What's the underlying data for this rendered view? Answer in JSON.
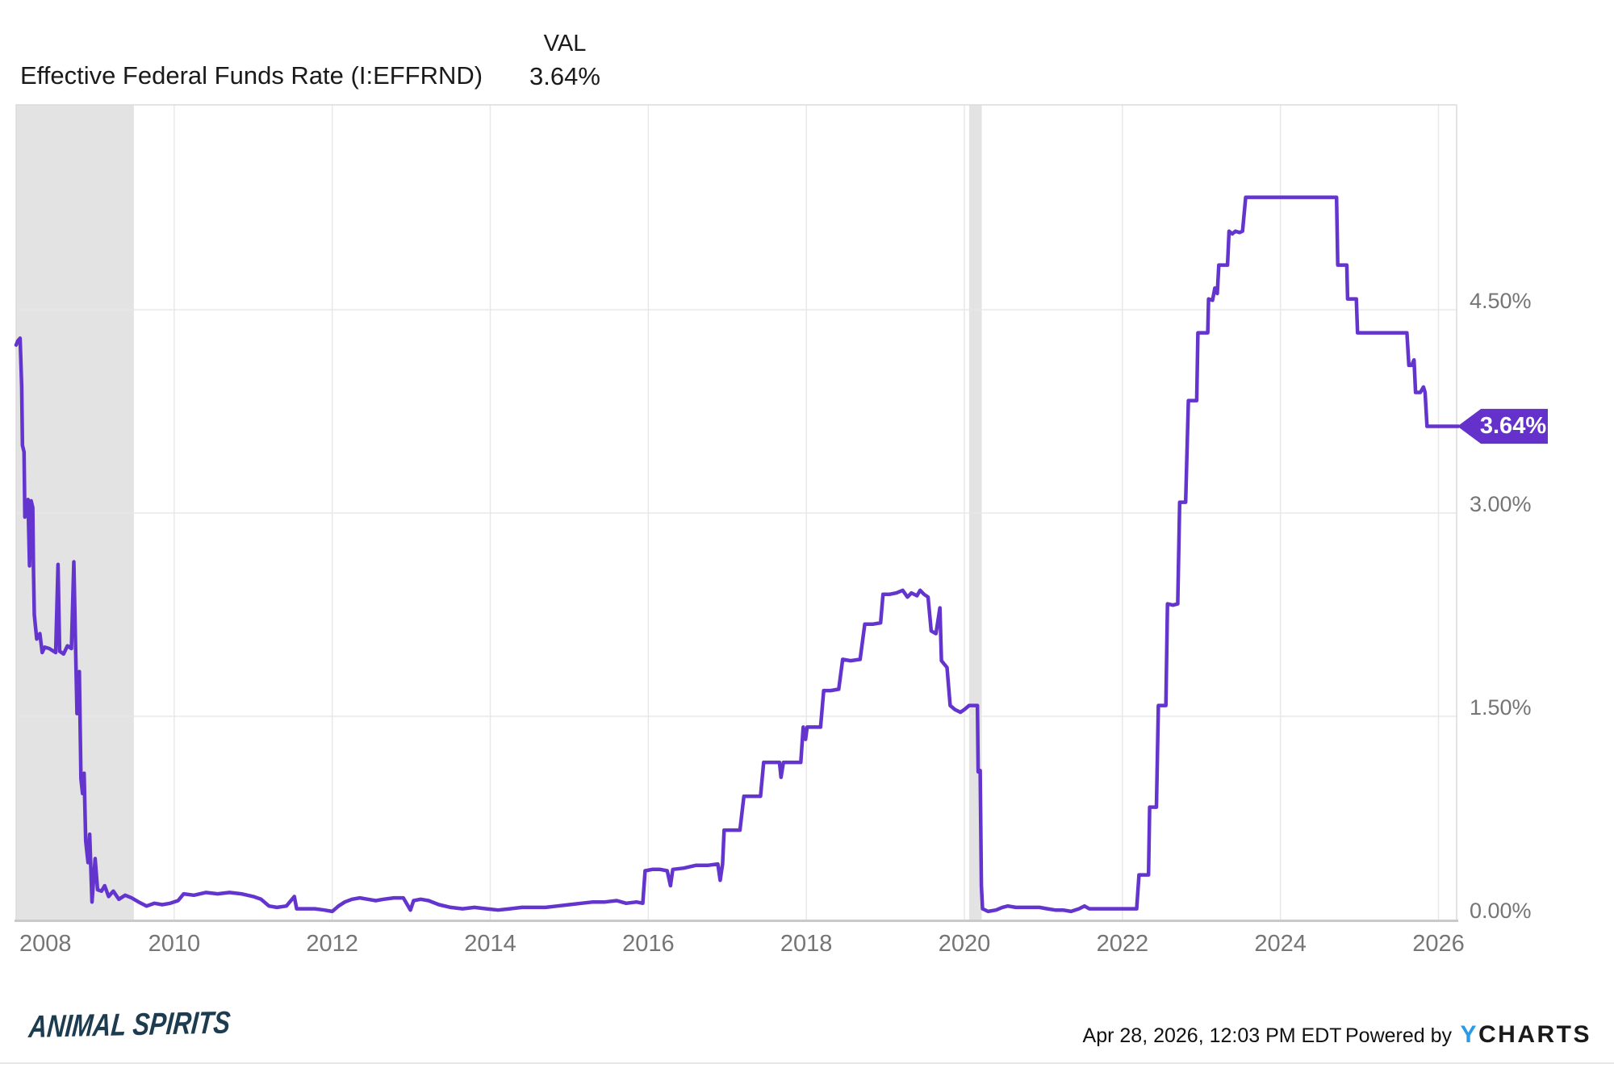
{
  "header": {
    "title": "Effective Federal Funds Rate (I:EFFRND)",
    "val_label": "VAL",
    "val_value": "3.64%"
  },
  "chart_data": {
    "type": "line",
    "title": "Effective Federal Funds Rate (I:EFFRND)",
    "series_name": "Effective Federal Funds Rate",
    "unit": "percent",
    "xlim": [
      2008.0,
      2026.25
    ],
    "ylim": [
      0,
      6.012
    ],
    "grid": true,
    "legend_position": "none",
    "x_ticks": [
      {
        "label": "2008",
        "year": 2008
      },
      {
        "label": "2010",
        "year": 2010
      },
      {
        "label": "2012",
        "year": 2012
      },
      {
        "label": "2014",
        "year": 2014
      },
      {
        "label": "2016",
        "year": 2016
      },
      {
        "label": "2018",
        "year": 2018
      },
      {
        "label": "2020",
        "year": 2020
      },
      {
        "label": "2022",
        "year": 2022
      },
      {
        "label": "2024",
        "year": 2024
      },
      {
        "label": "2026",
        "year": 2026
      }
    ],
    "y_ticks": [
      {
        "label": "0.00%",
        "value": 0
      },
      {
        "label": "1.50%",
        "value": 1.5
      },
      {
        "label": "3.00%",
        "value": 3.0
      },
      {
        "label": "4.50%",
        "value": 4.5
      }
    ],
    "recession_bands": [
      {
        "x0": 2008.0,
        "x1": 2009.49
      },
      {
        "x0": 2020.06,
        "x1": 2020.22
      }
    ],
    "last_value_label": "3.64%",
    "line_color": "#6434cf",
    "band_color": "#e3e3e3",
    "points": [
      [
        2008.0,
        4.24
      ],
      [
        2008.02,
        4.27
      ],
      [
        2008.05,
        4.29
      ],
      [
        2008.07,
        3.93
      ],
      [
        2008.08,
        3.5
      ],
      [
        2008.1,
        3.45
      ],
      [
        2008.11,
        2.97
      ],
      [
        2008.13,
        3.07
      ],
      [
        2008.15,
        3.1
      ],
      [
        2008.17,
        2.61
      ],
      [
        2008.19,
        3.09
      ],
      [
        2008.21,
        3.04
      ],
      [
        2008.22,
        2.58
      ],
      [
        2008.23,
        2.25
      ],
      [
        2008.26,
        2.07
      ],
      [
        2008.3,
        2.11
      ],
      [
        2008.33,
        1.97
      ],
      [
        2008.36,
        2.01
      ],
      [
        2008.42,
        2.0
      ],
      [
        2008.5,
        1.97
      ],
      [
        2008.53,
        2.62
      ],
      [
        2008.55,
        1.98
      ],
      [
        2008.6,
        1.96
      ],
      [
        2008.65,
        2.02
      ],
      [
        2008.7,
        2.0
      ],
      [
        2008.73,
        2.64
      ],
      [
        2008.755,
        1.94
      ],
      [
        2008.77,
        1.52
      ],
      [
        2008.8,
        1.83
      ],
      [
        2008.82,
        1.04
      ],
      [
        2008.84,
        0.93
      ],
      [
        2008.86,
        1.08
      ],
      [
        2008.88,
        0.58
      ],
      [
        2008.91,
        0.42
      ],
      [
        2008.93,
        0.63
      ],
      [
        2008.96,
        0.13
      ],
      [
        2009.0,
        0.45
      ],
      [
        2009.03,
        0.22
      ],
      [
        2009.08,
        0.21
      ],
      [
        2009.12,
        0.25
      ],
      [
        2009.17,
        0.17
      ],
      [
        2009.23,
        0.21
      ],
      [
        2009.3,
        0.15
      ],
      [
        2009.38,
        0.18
      ],
      [
        2009.46,
        0.16
      ],
      [
        2009.55,
        0.13
      ],
      [
        2009.65,
        0.1
      ],
      [
        2009.75,
        0.12
      ],
      [
        2009.85,
        0.11
      ],
      [
        2009.95,
        0.12
      ],
      [
        2010.05,
        0.14
      ],
      [
        2010.12,
        0.19
      ],
      [
        2010.25,
        0.18
      ],
      [
        2010.4,
        0.2
      ],
      [
        2010.55,
        0.19
      ],
      [
        2010.7,
        0.2
      ],
      [
        2010.85,
        0.19
      ],
      [
        2011.0,
        0.17
      ],
      [
        2011.1,
        0.15
      ],
      [
        2011.2,
        0.1
      ],
      [
        2011.3,
        0.09
      ],
      [
        2011.42,
        0.1
      ],
      [
        2011.52,
        0.17
      ],
      [
        2011.55,
        0.08
      ],
      [
        2011.65,
        0.08
      ],
      [
        2011.78,
        0.08
      ],
      [
        2011.9,
        0.07
      ],
      [
        2012.0,
        0.06
      ],
      [
        2012.08,
        0.1
      ],
      [
        2012.16,
        0.13
      ],
      [
        2012.25,
        0.15
      ],
      [
        2012.35,
        0.16
      ],
      [
        2012.45,
        0.15
      ],
      [
        2012.55,
        0.14
      ],
      [
        2012.65,
        0.15
      ],
      [
        2012.78,
        0.16
      ],
      [
        2012.9,
        0.16
      ],
      [
        2012.99,
        0.07
      ],
      [
        2013.03,
        0.14
      ],
      [
        2013.12,
        0.15
      ],
      [
        2013.22,
        0.14
      ],
      [
        2013.35,
        0.11
      ],
      [
        2013.5,
        0.09
      ],
      [
        2013.65,
        0.08
      ],
      [
        2013.8,
        0.09
      ],
      [
        2013.95,
        0.08
      ],
      [
        2014.1,
        0.07
      ],
      [
        2014.25,
        0.08
      ],
      [
        2014.4,
        0.09
      ],
      [
        2014.55,
        0.09
      ],
      [
        2014.7,
        0.09
      ],
      [
        2014.85,
        0.1
      ],
      [
        2015.0,
        0.11
      ],
      [
        2015.15,
        0.12
      ],
      [
        2015.3,
        0.13
      ],
      [
        2015.45,
        0.13
      ],
      [
        2015.6,
        0.14
      ],
      [
        2015.72,
        0.12
      ],
      [
        2015.85,
        0.13
      ],
      [
        2015.93,
        0.12
      ],
      [
        2015.96,
        0.36
      ],
      [
        2016.05,
        0.37
      ],
      [
        2016.15,
        0.37
      ],
      [
        2016.24,
        0.36
      ],
      [
        2016.28,
        0.25
      ],
      [
        2016.31,
        0.37
      ],
      [
        2016.45,
        0.38
      ],
      [
        2016.6,
        0.4
      ],
      [
        2016.75,
        0.4
      ],
      [
        2016.88,
        0.41
      ],
      [
        2016.91,
        0.29
      ],
      [
        2016.94,
        0.41
      ],
      [
        2016.96,
        0.66
      ],
      [
        2017.05,
        0.66
      ],
      [
        2017.16,
        0.66
      ],
      [
        2017.21,
        0.91
      ],
      [
        2017.32,
        0.91
      ],
      [
        2017.42,
        0.91
      ],
      [
        2017.46,
        1.16
      ],
      [
        2017.55,
        1.16
      ],
      [
        2017.66,
        1.16
      ],
      [
        2017.68,
        1.05
      ],
      [
        2017.71,
        1.16
      ],
      [
        2017.82,
        1.16
      ],
      [
        2017.93,
        1.16
      ],
      [
        2017.96,
        1.42
      ],
      [
        2017.99,
        1.33
      ],
      [
        2018.01,
        1.42
      ],
      [
        2018.1,
        1.42
      ],
      [
        2018.18,
        1.42
      ],
      [
        2018.22,
        1.69
      ],
      [
        2018.31,
        1.69
      ],
      [
        2018.41,
        1.7
      ],
      [
        2018.46,
        1.92
      ],
      [
        2018.56,
        1.91
      ],
      [
        2018.68,
        1.92
      ],
      [
        2018.74,
        2.18
      ],
      [
        2018.84,
        2.18
      ],
      [
        2018.94,
        2.19
      ],
      [
        2018.97,
        2.4
      ],
      [
        2019.05,
        2.4
      ],
      [
        2019.14,
        2.41
      ],
      [
        2019.22,
        2.43
      ],
      [
        2019.28,
        2.38
      ],
      [
        2019.33,
        2.41
      ],
      [
        2019.4,
        2.39
      ],
      [
        2019.44,
        2.43
      ],
      [
        2019.49,
        2.4
      ],
      [
        2019.54,
        2.38
      ],
      [
        2019.58,
        2.13
      ],
      [
        2019.64,
        2.11
      ],
      [
        2019.69,
        2.3
      ],
      [
        2019.71,
        1.91
      ],
      [
        2019.78,
        1.86
      ],
      [
        2019.82,
        1.58
      ],
      [
        2019.88,
        1.55
      ],
      [
        2019.95,
        1.53
      ],
      [
        2020.0,
        1.55
      ],
      [
        2020.06,
        1.58
      ],
      [
        2020.12,
        1.58
      ],
      [
        2020.165,
        1.58
      ],
      [
        2020.175,
        1.09
      ],
      [
        2020.2,
        1.1
      ],
      [
        2020.215,
        0.25
      ],
      [
        2020.23,
        0.08
      ],
      [
        2020.3,
        0.06
      ],
      [
        2020.4,
        0.07
      ],
      [
        2020.48,
        0.09
      ],
      [
        2020.55,
        0.1
      ],
      [
        2020.65,
        0.09
      ],
      [
        2020.75,
        0.09
      ],
      [
        2020.85,
        0.09
      ],
      [
        2020.95,
        0.09
      ],
      [
        2021.05,
        0.08
      ],
      [
        2021.15,
        0.07
      ],
      [
        2021.25,
        0.07
      ],
      [
        2021.35,
        0.06
      ],
      [
        2021.45,
        0.08
      ],
      [
        2021.52,
        0.1
      ],
      [
        2021.58,
        0.08
      ],
      [
        2021.7,
        0.08
      ],
      [
        2021.82,
        0.08
      ],
      [
        2021.95,
        0.08
      ],
      [
        2022.08,
        0.08
      ],
      [
        2022.18,
        0.08
      ],
      [
        2022.21,
        0.33
      ],
      [
        2022.3,
        0.33
      ],
      [
        2022.33,
        0.33
      ],
      [
        2022.345,
        0.83
      ],
      [
        2022.43,
        0.83
      ],
      [
        2022.455,
        1.58
      ],
      [
        2022.55,
        1.58
      ],
      [
        2022.57,
        2.33
      ],
      [
        2022.64,
        2.32
      ],
      [
        2022.7,
        2.33
      ],
      [
        2022.725,
        3.08
      ],
      [
        2022.8,
        3.08
      ],
      [
        2022.835,
        3.83
      ],
      [
        2022.9,
        3.83
      ],
      [
        2022.94,
        3.83
      ],
      [
        2022.955,
        4.33
      ],
      [
        2023.03,
        4.33
      ],
      [
        2023.08,
        4.33
      ],
      [
        2023.09,
        4.58
      ],
      [
        2023.14,
        4.57
      ],
      [
        2023.17,
        4.66
      ],
      [
        2023.2,
        4.62
      ],
      [
        2023.22,
        4.83
      ],
      [
        2023.28,
        4.83
      ],
      [
        2023.33,
        4.83
      ],
      [
        2023.35,
        5.08
      ],
      [
        2023.39,
        5.06
      ],
      [
        2023.43,
        5.08
      ],
      [
        2023.48,
        5.07
      ],
      [
        2023.52,
        5.08
      ],
      [
        2023.56,
        5.33
      ],
      [
        2023.7,
        5.33
      ],
      [
        2023.85,
        5.33
      ],
      [
        2024.0,
        5.33
      ],
      [
        2024.2,
        5.33
      ],
      [
        2024.4,
        5.33
      ],
      [
        2024.55,
        5.33
      ],
      [
        2024.71,
        5.33
      ],
      [
        2024.725,
        4.83
      ],
      [
        2024.79,
        4.83
      ],
      [
        2024.84,
        4.83
      ],
      [
        2024.85,
        4.58
      ],
      [
        2024.91,
        4.58
      ],
      [
        2024.96,
        4.58
      ],
      [
        2024.975,
        4.33
      ],
      [
        2025.05,
        4.33
      ],
      [
        2025.2,
        4.33
      ],
      [
        2025.35,
        4.33
      ],
      [
        2025.5,
        4.33
      ],
      [
        2025.6,
        4.33
      ],
      [
        2025.625,
        4.09
      ],
      [
        2025.66,
        4.09
      ],
      [
        2025.69,
        4.13
      ],
      [
        2025.71,
        3.89
      ],
      [
        2025.77,
        3.89
      ],
      [
        2025.81,
        3.93
      ],
      [
        2025.83,
        3.89
      ],
      [
        2025.855,
        3.64
      ],
      [
        2025.95,
        3.64
      ],
      [
        2026.05,
        3.64
      ],
      [
        2026.15,
        3.64
      ],
      [
        2026.25,
        3.64
      ]
    ]
  },
  "footer": {
    "brand": "Animal Spirits",
    "timestamp": "Apr 28, 2026, 12:03 PM EDT",
    "powered_by": "Powered by",
    "ycharts_y": "Y",
    "ycharts_rest": "CHARTS"
  }
}
